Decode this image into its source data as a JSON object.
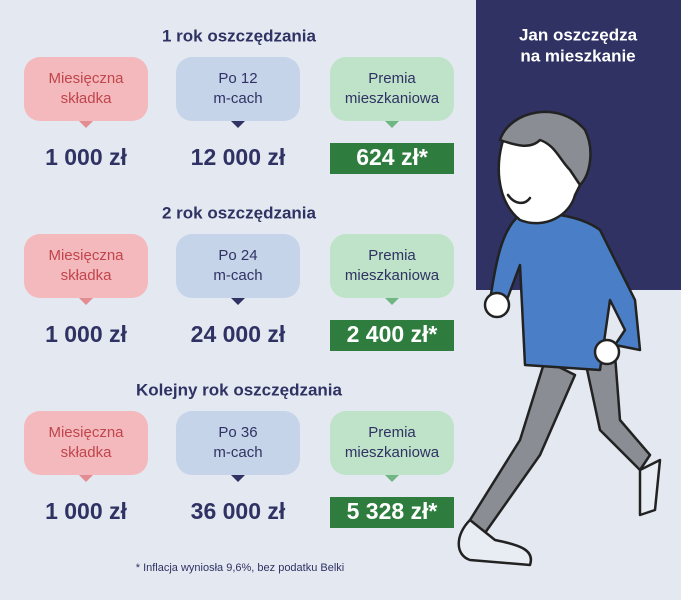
{
  "title_lines": [
    "Jan oszczędza",
    "na mieszkanie"
  ],
  "sections": [
    {
      "heading": "1 rok oszczędzania",
      "boxes": [
        {
          "label": [
            "Miesięczna",
            "składka"
          ],
          "value": "1 000 zł"
        },
        {
          "label": [
            "Po 12",
            "m-cach"
          ],
          "value": "12 000 zł"
        },
        {
          "label": [
            "Premia",
            "mieszkaniowa"
          ],
          "value": "624 zł*"
        }
      ]
    },
    {
      "heading": "2 rok oszczędzania",
      "boxes": [
        {
          "label": [
            "Miesięczna",
            "składka"
          ],
          "value": "1 000 zł"
        },
        {
          "label": [
            "Po 24",
            "m-cach"
          ],
          "value": "24 000 zł"
        },
        {
          "label": [
            "Premia",
            "mieszkaniowa"
          ],
          "value": "2 400 zł*"
        }
      ]
    },
    {
      "heading": "Kolejny rok oszczędzania",
      "boxes": [
        {
          "label": [
            "Miesięczna",
            "składka"
          ],
          "value": "1 000 zł"
        },
        {
          "label": [
            "Po 36",
            "m-cach"
          ],
          "value": "36 000 zł"
        },
        {
          "label": [
            "Premia",
            "mieszkaniowa"
          ],
          "value": "5 328 zł*"
        }
      ]
    }
  ],
  "footnote": "*  Inflacja wyniosła 9,6%, bez podatku Belki"
}
